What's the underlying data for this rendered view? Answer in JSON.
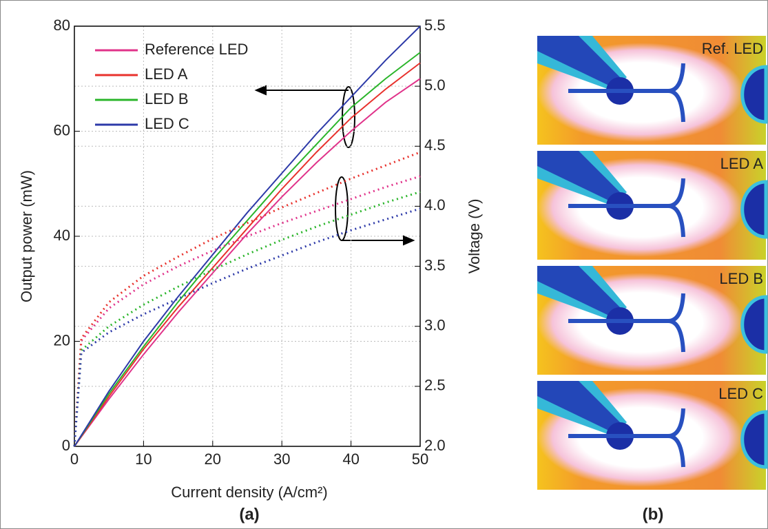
{
  "chart_data": {
    "type": "line",
    "x_label": "Current density (A/cm²)",
    "y_label": "Output power (mW)",
    "y2_label": "Voltage (V)",
    "x": [
      0,
      1,
      5,
      10,
      15,
      20,
      25,
      30,
      35,
      40,
      45,
      50
    ],
    "xlim": [
      0,
      50
    ],
    "xticks": [
      0,
      10,
      20,
      30,
      40,
      50
    ],
    "ylim": [
      0,
      80
    ],
    "yticks": [
      0,
      20,
      40,
      60,
      80
    ],
    "y2lim": [
      2.0,
      5.5
    ],
    "y2ticks": [
      {
        "value": 2,
        "label": "2.0"
      },
      2.5,
      {
        "value": 3,
        "label": "3.0"
      },
      3.5,
      {
        "value": 4,
        "label": "4.0"
      },
      4.5,
      {
        "value": 5,
        "label": "5.0"
      },
      5.5
    ],
    "grid": true,
    "legend": "upper left",
    "series": [
      {
        "name": "Reference LED",
        "color": "#e0338a",
        "style": "solid",
        "values": [
          0,
          1.8,
          9,
          17.5,
          25.5,
          33,
          40.5,
          47.5,
          54,
          60,
          65.5,
          70
        ]
      },
      {
        "name": "LED A",
        "color": "#e8312c",
        "style": "solid",
        "values": [
          0,
          1.9,
          9.5,
          18.5,
          26.5,
          34,
          41.5,
          49,
          56,
          62.5,
          68,
          73
        ]
      },
      {
        "name": "LED B",
        "color": "#2ab52a",
        "style": "solid",
        "values": [
          0,
          2,
          10,
          19,
          27.5,
          35.5,
          43,
          50.5,
          57.5,
          64.5,
          70,
          75
        ]
      },
      {
        "name": "LED C",
        "color": "#2d3aa8",
        "style": "solid",
        "values": [
          0,
          2.1,
          10.5,
          20,
          28.5,
          36.5,
          44.5,
          52,
          59.5,
          66.5,
          73.5,
          80
        ]
      },
      {
        "color": "#e0338a",
        "style": "dotted",
        "axis": "y2",
        "values": [
          2.0,
          2.88,
          3.15,
          3.35,
          3.5,
          3.63,
          3.75,
          3.86,
          3.96,
          4.06,
          4.16,
          4.25
        ]
      },
      {
        "color": "#e8312c",
        "style": "dotted",
        "axis": "y2",
        "values": [
          2.0,
          2.9,
          3.2,
          3.42,
          3.58,
          3.73,
          3.86,
          3.99,
          4.11,
          4.23,
          4.34,
          4.45
        ]
      },
      {
        "color": "#2ab52a",
        "style": "dotted",
        "axis": "y2",
        "values": [
          2.0,
          2.8,
          3.0,
          3.18,
          3.33,
          3.47,
          3.6,
          3.72,
          3.83,
          3.93,
          4.03,
          4.12
        ]
      },
      {
        "color": "#2d3aa8",
        "style": "dotted",
        "axis": "y2",
        "values": [
          2.0,
          2.78,
          2.95,
          3.1,
          3.23,
          3.36,
          3.48,
          3.59,
          3.7,
          3.8,
          3.89,
          3.98
        ]
      }
    ]
  },
  "panel_labels": [
    "(a)",
    "(b)"
  ],
  "heatmap_labels": [
    "Ref. LED",
    "LED A",
    "LED B",
    "LED C"
  ]
}
